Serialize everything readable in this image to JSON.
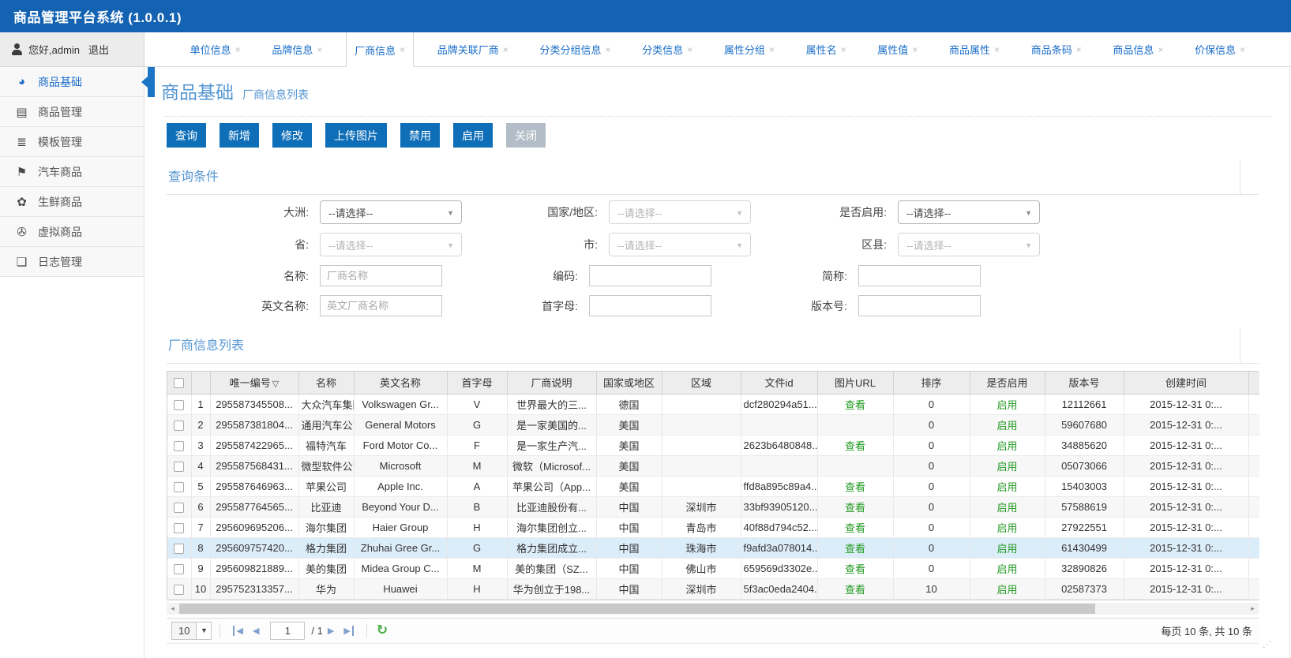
{
  "app": {
    "title": "商品管理平台系统 (1.0.0.1)"
  },
  "user": {
    "greeting": "您好,admin",
    "logout": "退出"
  },
  "tabs": {
    "active_index": 2,
    "close_glyph": "×",
    "items": [
      "单位信息",
      "品牌信息",
      "厂商信息",
      "品牌关联厂商",
      "分类分组信息",
      "分类信息",
      "属性分组",
      "属性名",
      "属性值",
      "商品属性",
      "商品条码",
      "商品信息",
      "价保信息"
    ]
  },
  "sidebar": {
    "items": [
      {
        "label": "商品基础",
        "icon": "gauge-icon",
        "glyph": "◕",
        "active": true
      },
      {
        "label": "商品管理",
        "icon": "book-icon",
        "glyph": "▤",
        "active": false
      },
      {
        "label": "模板管理",
        "icon": "template-icon",
        "glyph": "≣",
        "active": false
      },
      {
        "label": "汽车商品",
        "icon": "bookmark-icon",
        "glyph": "⚑",
        "active": false
      },
      {
        "label": "生鲜商品",
        "icon": "leaf-icon",
        "glyph": "✿",
        "active": false
      },
      {
        "label": "虚拟商品",
        "icon": "camera-icon",
        "glyph": "✇",
        "active": false
      },
      {
        "label": "日志管理",
        "icon": "log-file-icon",
        "glyph": "❏",
        "active": false
      }
    ]
  },
  "page": {
    "title": "商品基础",
    "subtitle": "厂商信息列表"
  },
  "toolbar": {
    "buttons": [
      {
        "label": "查询",
        "name": "search-button",
        "style": "primary"
      },
      {
        "label": "新增",
        "name": "add-button",
        "style": "primary"
      },
      {
        "label": "修改",
        "name": "edit-button",
        "style": "primary"
      },
      {
        "label": "上传图片",
        "name": "upload-image-button",
        "style": "primary"
      },
      {
        "label": "禁用",
        "name": "disable-button",
        "style": "primary"
      },
      {
        "label": "启用",
        "name": "enable-button",
        "style": "primary"
      },
      {
        "label": "关闭",
        "name": "close-button",
        "style": "muted"
      }
    ]
  },
  "query": {
    "section_title": "查询条件",
    "rows": [
      [
        {
          "label": "大洲:",
          "name": "continent-select",
          "type": "select",
          "value": "--请选择--",
          "disabled": false
        },
        {
          "label": "国家/地区:",
          "name": "country-select",
          "type": "select",
          "value": "--请选择--",
          "disabled": true
        },
        {
          "label": "是否启用:",
          "name": "enabled-select",
          "type": "select",
          "value": "--请选择--",
          "disabled": false
        }
      ],
      [
        {
          "label": "省:",
          "name": "province-select",
          "type": "select",
          "value": "--请选择--",
          "disabled": true
        },
        {
          "label": "市:",
          "name": "city-select",
          "type": "select",
          "value": "--请选择--",
          "disabled": true
        },
        {
          "label": "区县:",
          "name": "district-select",
          "type": "select",
          "value": "--请选择--",
          "disabled": true
        }
      ],
      [
        {
          "label": "名称:",
          "name": "name-input",
          "type": "input",
          "value": "",
          "placeholder": "厂商名称"
        },
        {
          "label": "编码:",
          "name": "code-input",
          "type": "input",
          "value": "",
          "placeholder": ""
        },
        {
          "label": "简称:",
          "name": "short-name-input",
          "type": "input",
          "value": "",
          "placeholder": ""
        }
      ],
      [
        {
          "label": "英文名称:",
          "name": "english-name-input",
          "type": "input",
          "value": "",
          "placeholder": "英文厂商名称"
        },
        {
          "label": "首字母:",
          "name": "initial-input",
          "type": "input",
          "value": "",
          "placeholder": ""
        },
        {
          "label": "版本号:",
          "name": "version-input",
          "type": "input",
          "value": "",
          "placeholder": ""
        }
      ]
    ]
  },
  "list": {
    "section_title": "厂商信息列表",
    "columns": [
      "唯一编号",
      "名称",
      "英文名称",
      "首字母",
      "厂商说明",
      "国家或地区",
      "区域",
      "文件id",
      "图片URL",
      "排序",
      "是否启用",
      "版本号",
      "创建时间"
    ],
    "sort_column_index": 0,
    "sort_glyph": "▽",
    "view_label": "查看",
    "selected_row_number": 8,
    "rows": [
      {
        "num": 1,
        "id": "295587345508...",
        "name": "大众汽车集团",
        "en_name": "Volkswagen Gr...",
        "initial": "V",
        "desc": "世界最大的三...",
        "country": "德国",
        "region": "",
        "file_id": "dcf280294a51...",
        "pic_url": "查看",
        "sort": "0",
        "enabled": "启用",
        "version": "12112661",
        "created": "2015-12-31 0:..."
      },
      {
        "num": 2,
        "id": "295587381804...",
        "name": "通用汽车公司",
        "en_name": "General Motors",
        "initial": "G",
        "desc": "是一家美国的...",
        "country": "美国",
        "region": "",
        "file_id": "",
        "pic_url": "",
        "sort": "0",
        "enabled": "启用",
        "version": "59607680",
        "created": "2015-12-31 0:..."
      },
      {
        "num": 3,
        "id": "295587422965...",
        "name": "福特汽车",
        "en_name": "Ford Motor Co...",
        "initial": "F",
        "desc": "是一家生产汽...",
        "country": "美国",
        "region": "",
        "file_id": "2623b6480848...",
        "pic_url": "查看",
        "sort": "0",
        "enabled": "启用",
        "version": "34885620",
        "created": "2015-12-31 0:..."
      },
      {
        "num": 4,
        "id": "295587568431...",
        "name": "微型软件公司",
        "en_name": "Microsoft",
        "initial": "M",
        "desc": "微软（Microsof...",
        "country": "美国",
        "region": "",
        "file_id": "",
        "pic_url": "",
        "sort": "0",
        "enabled": "启用",
        "version": "05073066",
        "created": "2015-12-31 0:..."
      },
      {
        "num": 5,
        "id": "295587646963...",
        "name": "苹果公司",
        "en_name": "Apple Inc.",
        "initial": "A",
        "desc": "苹果公司（App...",
        "country": "美国",
        "region": "",
        "file_id": "ffd8a895c89a4...",
        "pic_url": "查看",
        "sort": "0",
        "enabled": "启用",
        "version": "15403003",
        "created": "2015-12-31 0:..."
      },
      {
        "num": 6,
        "id": "295587764565...",
        "name": "比亚迪",
        "en_name": "Beyond Your D...",
        "initial": "B",
        "desc": "比亚迪股份有...",
        "country": "中国",
        "region": "深圳市",
        "file_id": "33bf93905120...",
        "pic_url": "查看",
        "sort": "0",
        "enabled": "启用",
        "version": "57588619",
        "created": "2015-12-31 0:..."
      },
      {
        "num": 7,
        "id": "295609695206...",
        "name": "海尔集团",
        "en_name": "Haier Group",
        "initial": "H",
        "desc": "海尔集团创立...",
        "country": "中国",
        "region": "青岛市",
        "file_id": "40f88d794c52...",
        "pic_url": "查看",
        "sort": "0",
        "enabled": "启用",
        "version": "27922551",
        "created": "2015-12-31 0:..."
      },
      {
        "num": 8,
        "id": "295609757420...",
        "name": "格力集团",
        "en_name": "Zhuhai Gree Gr...",
        "initial": "G",
        "desc": "格力集团成立...",
        "country": "中国",
        "region": "珠海市",
        "file_id": "f9afd3a078014...",
        "pic_url": "查看",
        "sort": "0",
        "enabled": "启用",
        "version": "61430499",
        "created": "2015-12-31 0:..."
      },
      {
        "num": 9,
        "id": "295609821889...",
        "name": "美的集团",
        "en_name": "Midea Group C...",
        "initial": "M",
        "desc": "美的集团（SZ...",
        "country": "中国",
        "region": "佛山市",
        "file_id": "659569d3302e...",
        "pic_url": "查看",
        "sort": "0",
        "enabled": "启用",
        "version": "32890826",
        "created": "2015-12-31 0:..."
      },
      {
        "num": 10,
        "id": "295752313357...",
        "name": "华为",
        "en_name": "Huawei",
        "initial": "H",
        "desc": "华为创立于198...",
        "country": "中国",
        "region": "深圳市",
        "file_id": "5f3ac0eda2404...",
        "pic_url": "查看",
        "sort": "10",
        "enabled": "启用",
        "version": "02587373",
        "created": "2015-12-31 0:..."
      }
    ]
  },
  "pagination": {
    "page_size": "10",
    "current_page": "1",
    "total_pages": "/ 1",
    "note": "每页 10 条, 共 10 条"
  }
}
